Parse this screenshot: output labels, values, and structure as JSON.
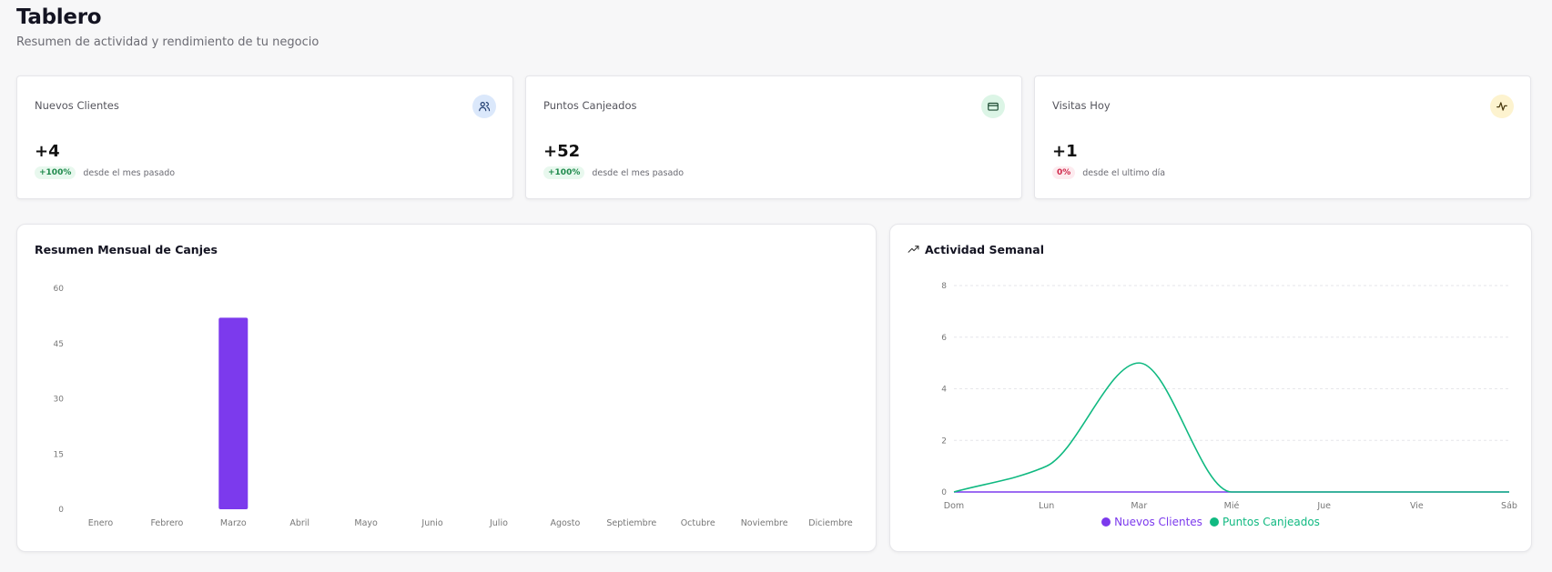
{
  "header": {
    "title": "Tablero",
    "subtitle": "Resumen de actividad y rendimiento de tu negocio"
  },
  "stats": [
    {
      "label": "Nuevos Clientes",
      "value": "+4",
      "change": "+100%",
      "change_text": "desde el mes pasado",
      "icon": "users-icon",
      "icon_bg": "#dbe8fb",
      "icon_color": "#1e3a6e"
    },
    {
      "label": "Puntos Canjeados",
      "value": "+52",
      "change": "+100%",
      "change_text": "desde el mes pasado",
      "icon": "credit-card-icon",
      "icon_bg": "#dcf5e6",
      "icon_color": "#1d4a32"
    },
    {
      "label": "Visitas Hoy",
      "value": "+1",
      "change": "0%",
      "change_text": "desde el ultimo día",
      "icon": "activity-icon",
      "icon_bg": "#fdf3cf",
      "icon_color": "#4a3a10"
    }
  ],
  "monthly_chart": {
    "title": "Resumen Mensual de Canjes",
    "chart_data": {
      "type": "bar",
      "categories": [
        "Enero",
        "Febrero",
        "Marzo",
        "Abril",
        "Mayo",
        "Junio",
        "Julio",
        "Agosto",
        "Septiembre",
        "Octubre",
        "Noviembre",
        "Diciembre"
      ],
      "values": [
        0,
        0,
        52,
        0,
        0,
        0,
        0,
        0,
        0,
        0,
        0,
        0
      ],
      "yticks": [
        0,
        15,
        30,
        45,
        60
      ],
      "ylim": [
        0,
        60
      ],
      "grid": false,
      "color": "#7c3aed"
    }
  },
  "weekly_chart": {
    "title": "Actividad Semanal",
    "icon": "trending-up-icon",
    "chart_data": {
      "type": "line",
      "categories": [
        "Dom",
        "Lun",
        "Mar",
        "Mié",
        "Jue",
        "Vie",
        "Sáb"
      ],
      "series": [
        {
          "name": "Nuevos Clientes",
          "values": [
            0,
            0,
            0,
            0,
            0,
            0,
            0
          ],
          "color": "#7c3aed"
        },
        {
          "name": "Puntos Canjeados",
          "values": [
            0,
            1,
            5,
            0,
            0,
            0,
            0
          ],
          "color": "#10b981"
        }
      ],
      "yticks": [
        0,
        2,
        4,
        6,
        8
      ],
      "ylim": [
        0,
        8
      ],
      "grid": true,
      "legend": "bottom"
    }
  }
}
